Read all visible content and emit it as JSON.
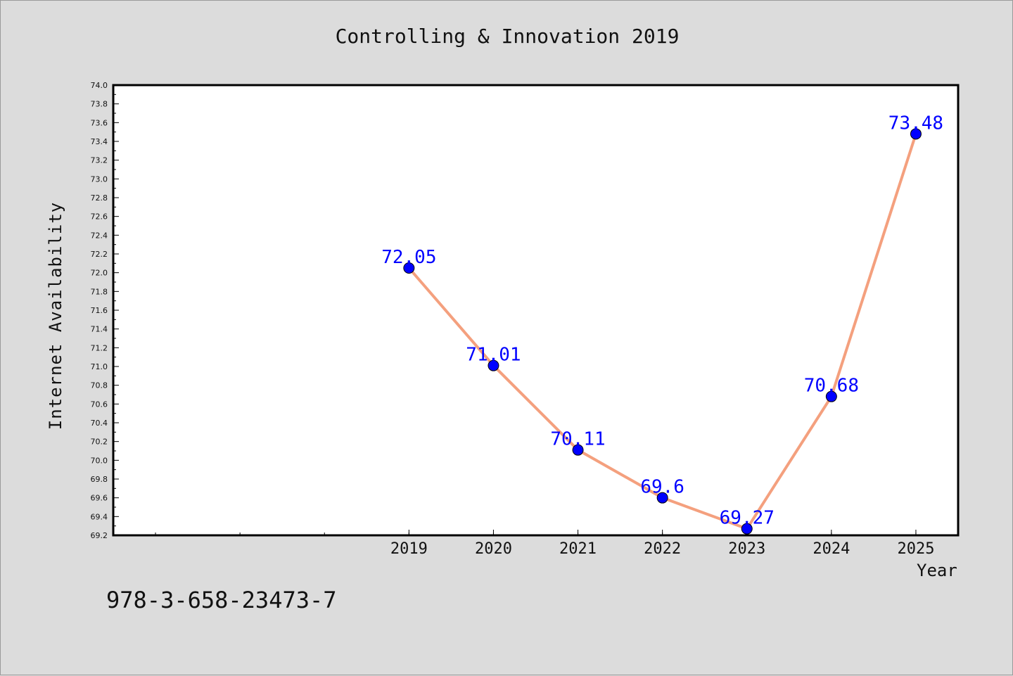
{
  "title": "Controlling & Innovation 2019",
  "footer_text": "978-3-658-23473-7",
  "colors": {
    "background": "#dcdcdc",
    "plot_background": "#ffffff",
    "line": "#f4a07e",
    "marker": "#0000ff",
    "data_label": "#0000ff"
  },
  "chart_data": {
    "type": "line",
    "title": "Controlling & Innovation 2019",
    "xlabel": "Year",
    "ylabel": "Internet Availability",
    "x": [
      2019,
      2020,
      2021,
      2022,
      2023,
      2024,
      2025
    ],
    "x_tick_labels": [
      "2019",
      "2020",
      "2021",
      "2022",
      "2023",
      "2024",
      "2025"
    ],
    "xlim": [
      2015.5,
      2025.5
    ],
    "ylim": [
      69.2,
      74.0
    ],
    "y_major_step": 0.2,
    "y_tick_labels": [
      "69.2",
      "69.4",
      "69.6",
      "69.8",
      "70.0",
      "70.2",
      "70.4",
      "70.6",
      "70.8",
      "71.0",
      "71.2",
      "71.4",
      "71.6",
      "71.8",
      "72.0",
      "72.2",
      "72.4",
      "72.6",
      "72.8",
      "73.0",
      "73.2",
      "73.4",
      "73.6",
      "73.8",
      "74.0"
    ],
    "series": [
      {
        "values": [
          72.05,
          71.01,
          70.11,
          69.6,
          69.27,
          70.68,
          73.48
        ],
        "data_labels": [
          "72.05",
          "71.01",
          "70.11",
          "69.6",
          "69.27",
          "70.68",
          "73.48"
        ]
      }
    ],
    "grid": false,
    "legend": "none"
  }
}
